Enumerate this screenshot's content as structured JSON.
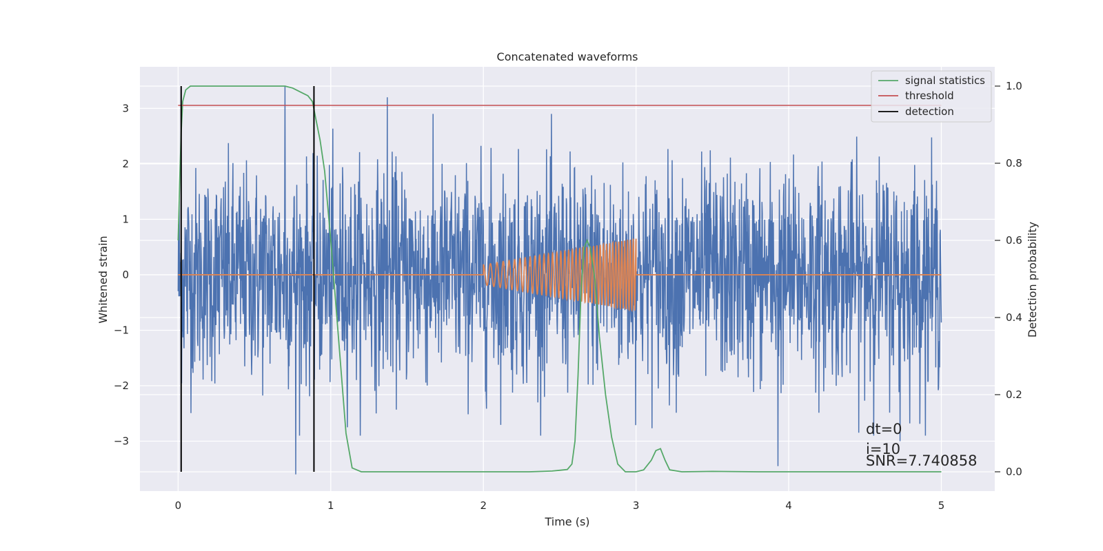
{
  "chart_data": {
    "type": "line",
    "title": "Concatenated waveforms",
    "xlabel": "Time (s)",
    "ylabel_left": "Whitened strain",
    "ylabel_right": "Detection probability",
    "xlim": [
      -0.25,
      5.35
    ],
    "ylim_left": [
      -3.9,
      3.75
    ],
    "ylim_right": [
      -0.05,
      1.05
    ],
    "x_ticks": [
      0,
      1,
      2,
      3,
      4,
      5
    ],
    "x_tick_labels": [
      "0",
      "1",
      "2",
      "3",
      "4",
      "5"
    ],
    "y_left_ticks": [
      -3,
      -2,
      -1,
      0,
      1,
      2,
      3
    ],
    "y_left_tick_labels": [
      "−3",
      "−2",
      "−1",
      "0",
      "1",
      "2",
      "3"
    ],
    "y_right_ticks": [
      0.0,
      0.2,
      0.4,
      0.6,
      0.8,
      1.0
    ],
    "y_right_tick_labels": [
      "0.0",
      "0.2",
      "0.4",
      "0.6",
      "0.8",
      "1.0"
    ],
    "grid": true,
    "legend_position": "top-right",
    "series": [
      {
        "name": "strain noise",
        "axis": "left",
        "color": "#4c72b0",
        "kind": "noise",
        "x_range": [
          0,
          5
        ],
        "typical_range": [
          -2.3,
          2.3
        ],
        "notable_spikes": [
          {
            "x": 0.7,
            "y": 3.4
          },
          {
            "x": 0.77,
            "y": -3.6
          },
          {
            "x": 1.37,
            "y": 3.2
          },
          {
            "x": 3.93,
            "y": -3.45
          },
          {
            "x": 4.73,
            "y": -3.0
          }
        ]
      },
      {
        "name": "injected waveform",
        "axis": "left",
        "color": "#dd8452",
        "kind": "chirp",
        "x_range": [
          0,
          5
        ],
        "chirp_start": 2.0,
        "chirp_end": 3.0,
        "amplitude_start": 0.18,
        "amplitude_end": 0.65,
        "cycles": 38
      },
      {
        "name": "signal statistics",
        "axis": "right",
        "color": "#55a868",
        "x": [
          0.0,
          0.01,
          0.02,
          0.03,
          0.05,
          0.08,
          0.15,
          0.4,
          0.7,
          0.75,
          0.8,
          0.85,
          0.88,
          0.9,
          0.93,
          0.96,
          1.0,
          1.05,
          1.1,
          1.14,
          1.2,
          1.5,
          2.0,
          2.3,
          2.45,
          2.5,
          2.55,
          2.58,
          2.6,
          2.62,
          2.64,
          2.66,
          2.68,
          2.7,
          2.73,
          2.76,
          2.8,
          2.84,
          2.88,
          2.93,
          3.0,
          3.05,
          3.1,
          3.13,
          3.16,
          3.19,
          3.22,
          3.3,
          3.5,
          3.8,
          4.5,
          5.0
        ],
        "y": [
          0.6,
          0.75,
          0.88,
          0.96,
          0.99,
          1.0,
          1.0,
          1.0,
          1.0,
          0.995,
          0.985,
          0.975,
          0.96,
          0.92,
          0.86,
          0.78,
          0.6,
          0.35,
          0.1,
          0.01,
          0.0,
          0.0,
          0.0,
          0.0,
          0.002,
          0.004,
          0.006,
          0.02,
          0.08,
          0.25,
          0.47,
          0.58,
          0.6,
          0.58,
          0.5,
          0.35,
          0.2,
          0.09,
          0.02,
          0.0,
          0.0,
          0.005,
          0.03,
          0.055,
          0.06,
          0.03,
          0.005,
          0.0,
          0.001,
          0.0,
          0.0,
          0.0
        ]
      },
      {
        "name": "threshold",
        "axis": "right",
        "color": "#c44e52",
        "x": [
          0.0,
          5.0
        ],
        "y": [
          0.95,
          0.95
        ]
      },
      {
        "name": "detection",
        "axis": "right",
        "color": "#000000",
        "kind": "vlines",
        "x": [
          0.02,
          0.89
        ],
        "y_range": [
          0.0,
          1.0
        ]
      }
    ],
    "legend": [
      "signal statistics",
      "threshold",
      "detection"
    ],
    "annotations": [
      "dt=0",
      "i=10",
      "SNR=7.740858"
    ]
  }
}
